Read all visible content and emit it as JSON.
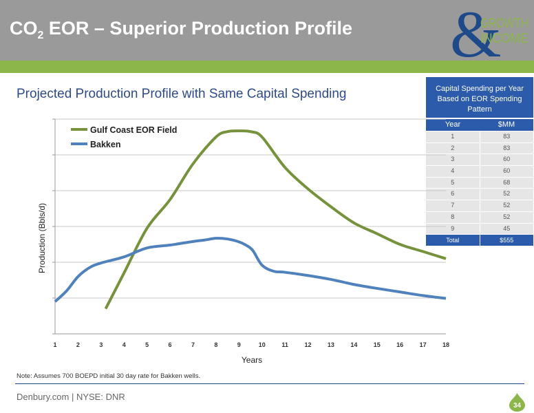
{
  "header": {
    "title_pre": "CO",
    "title_sub": "2",
    "title_post": " EOR – Superior Production Profile",
    "logo_top": "GROWTH",
    "logo_bottom": "INCOME",
    "logo_mark": "&",
    "brand_gray": "#9a9a9a",
    "brand_green": "#8cb54a",
    "brand_blue": "#1f4a8a"
  },
  "subtitle": "Projected Production Profile with Same Capital Spending",
  "capital_table": {
    "title": "Capital Spending per Year Based on EOR Spending Pattern",
    "col_year": "Year",
    "col_value": "$MM",
    "rows": [
      {
        "year": "1",
        "value": "83"
      },
      {
        "year": "2",
        "value": "83"
      },
      {
        "year": "3",
        "value": "60"
      },
      {
        "year": "4",
        "value": "60"
      },
      {
        "year": "5",
        "value": "68"
      },
      {
        "year": "6",
        "value": "52"
      },
      {
        "year": "7",
        "value": "52"
      },
      {
        "year": "8",
        "value": "52"
      },
      {
        "year": "9",
        "value": "45"
      }
    ],
    "total_label": "Total",
    "total_value": "$555"
  },
  "chart_data": {
    "type": "line",
    "title": "",
    "xlabel": "Years",
    "ylabel": "Production (Bbls/d)",
    "xlim": [
      1,
      18
    ],
    "ylim": [
      0,
      6
    ],
    "x_ticks": [
      "1",
      "2",
      "3",
      "4",
      "5",
      "6",
      "7",
      "8",
      "9",
      "10",
      "11",
      "12",
      "13",
      "14",
      "15",
      "16",
      "17",
      "18"
    ],
    "grid": "horizontal",
    "legend": "top-left",
    "series": [
      {
        "name": "Gulf Coast EOR Field",
        "color": "#76923c",
        "x": [
          3.2,
          4,
          5,
          6,
          7,
          8,
          8.5,
          9,
          9.5,
          10,
          11,
          12,
          13,
          14,
          15,
          16,
          17,
          18
        ],
        "y": [
          0.7,
          1.7,
          2.95,
          3.75,
          4.75,
          5.5,
          5.65,
          5.67,
          5.65,
          5.5,
          4.65,
          4.05,
          3.55,
          3.1,
          2.8,
          2.5,
          2.3,
          2.1
        ]
      },
      {
        "name": "Bakken",
        "color": "#4f81bd",
        "x": [
          1,
          1.5,
          2,
          2.5,
          3,
          4,
          5,
          6,
          7,
          7.5,
          8,
          8.5,
          9,
          9.3,
          9.6,
          10,
          10.5,
          11,
          12,
          13,
          14,
          15,
          16,
          17,
          18
        ],
        "y": [
          0.9,
          1.2,
          1.6,
          1.85,
          1.98,
          2.15,
          2.4,
          2.48,
          2.58,
          2.62,
          2.67,
          2.65,
          2.57,
          2.48,
          2.33,
          1.92,
          1.75,
          1.72,
          1.63,
          1.52,
          1.38,
          1.27,
          1.17,
          1.07,
          0.99
        ]
      }
    ]
  },
  "note": "Note:  Assumes 700 BOEPD initial 30 day rate for Bakken wells.",
  "footer": "Denbury.com | NYSE: DNR",
  "page_number": "34"
}
